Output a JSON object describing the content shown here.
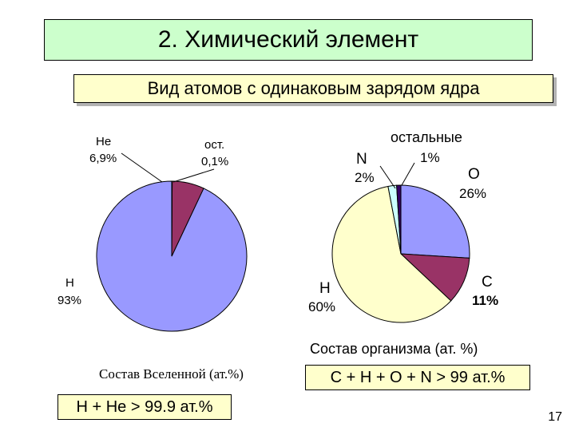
{
  "slide": {
    "title": "2. Химический элемент",
    "subtitle": "Вид атомов с одинаковым зарядом ядра",
    "formula_universe": "H + He > 99.9 ат.%",
    "formula_organism": "C + H + O + N > 99 ат.%",
    "page_number": "17"
  },
  "chart_data": [
    {
      "type": "pie",
      "title": "Состав Вселенной (ат.%)",
      "slices": [
        {
          "name": "H",
          "value": 93,
          "value_label": "93%",
          "color": "#9999ff"
        },
        {
          "name": "He",
          "value": 6.9,
          "value_label": "6,9%",
          "color": "#993366"
        },
        {
          "name": "ост.",
          "value": 0.1,
          "value_label": "0,1%",
          "color": "#ffffcc"
        }
      ]
    },
    {
      "type": "pie",
      "title": "Состав организма (ат. %)",
      "slices": [
        {
          "name": "O",
          "value": 26,
          "value_label": "26%",
          "color": "#9999ff"
        },
        {
          "name": "C",
          "value": 11,
          "value_label": "11%",
          "color": "#993366"
        },
        {
          "name": "H",
          "value": 60,
          "value_label": "60%",
          "color": "#ffffcc"
        },
        {
          "name": "N",
          "value": 2,
          "value_label": "2%",
          "color": "#ccffff"
        },
        {
          "name": "остальные",
          "value": 1,
          "value_label": "1%",
          "color": "#330066"
        }
      ]
    }
  ]
}
